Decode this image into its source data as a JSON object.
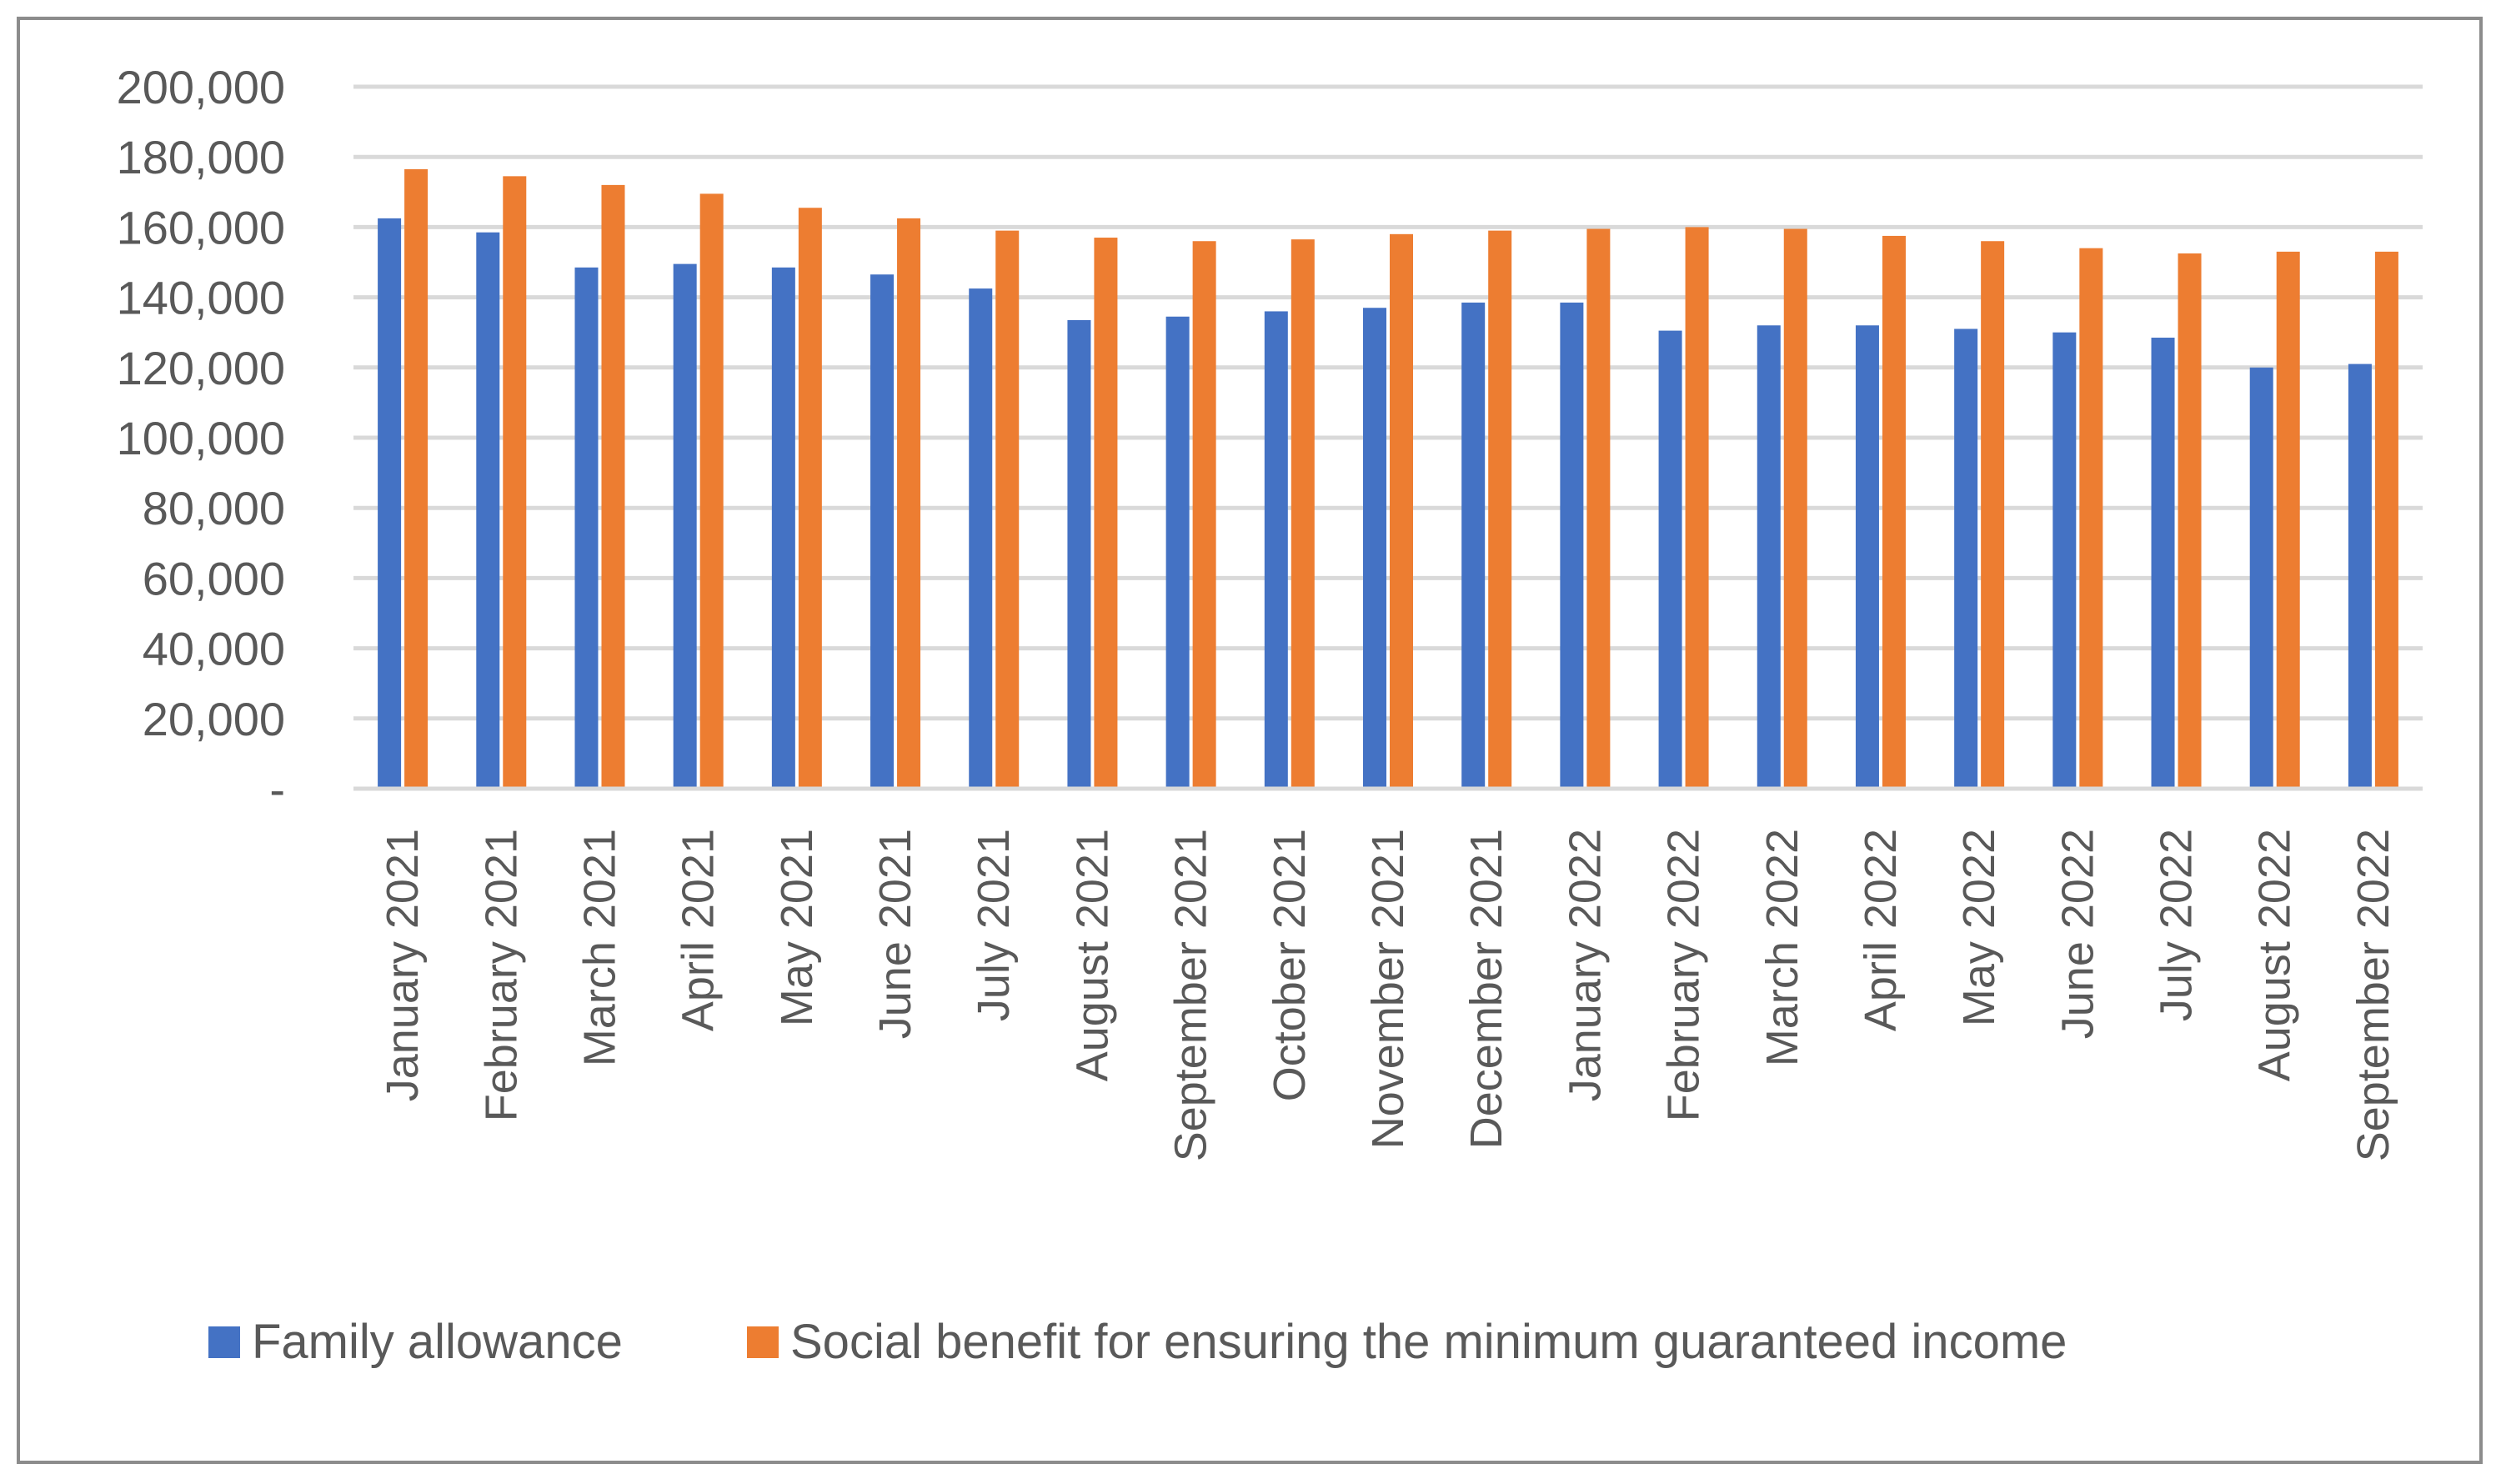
{
  "chart_data": {
    "type": "bar",
    "categories": [
      "January 2021",
      "February 2021",
      "March 2021",
      "April 2021",
      "May 2021",
      "June 2021",
      "July 2021",
      "August 2021",
      "September  2021",
      "October 2021",
      "November 2021",
      "December 2021",
      "January 2022",
      "February 2022",
      "March 2022",
      "April 2022",
      "May 2022",
      "June 2022",
      "July 2022",
      "August 2022",
      "September 2022"
    ],
    "series": [
      {
        "name": "Family allowance",
        "color": "#4472C4",
        "values": [
          162500,
          158500,
          148500,
          149500,
          148500,
          146500,
          142500,
          133500,
          134500,
          136000,
          137000,
          138500,
          138500,
          130500,
          132000,
          132000,
          131000,
          130000,
          128500,
          120000,
          121000
        ]
      },
      {
        "name": "Social benefit for ensuring the minimum guaranteed income",
        "color": "#ED7D31",
        "values": [
          176500,
          174500,
          172000,
          169500,
          165500,
          162500,
          159000,
          157000,
          156000,
          156500,
          158000,
          159000,
          159500,
          160000,
          159500,
          157500,
          156000,
          154000,
          152500,
          153000,
          153000
        ]
      }
    ],
    "yticks": [
      "-",
      "20,000",
      "40,000",
      "60,000",
      "80,000",
      "100,000",
      "120,000",
      "140,000",
      "160,000",
      "180,000",
      "200,000"
    ],
    "ylim": [
      0,
      200000
    ],
    "grid": true,
    "legend_position": "bottom",
    "title": "",
    "xlabel": "",
    "ylabel": ""
  }
}
